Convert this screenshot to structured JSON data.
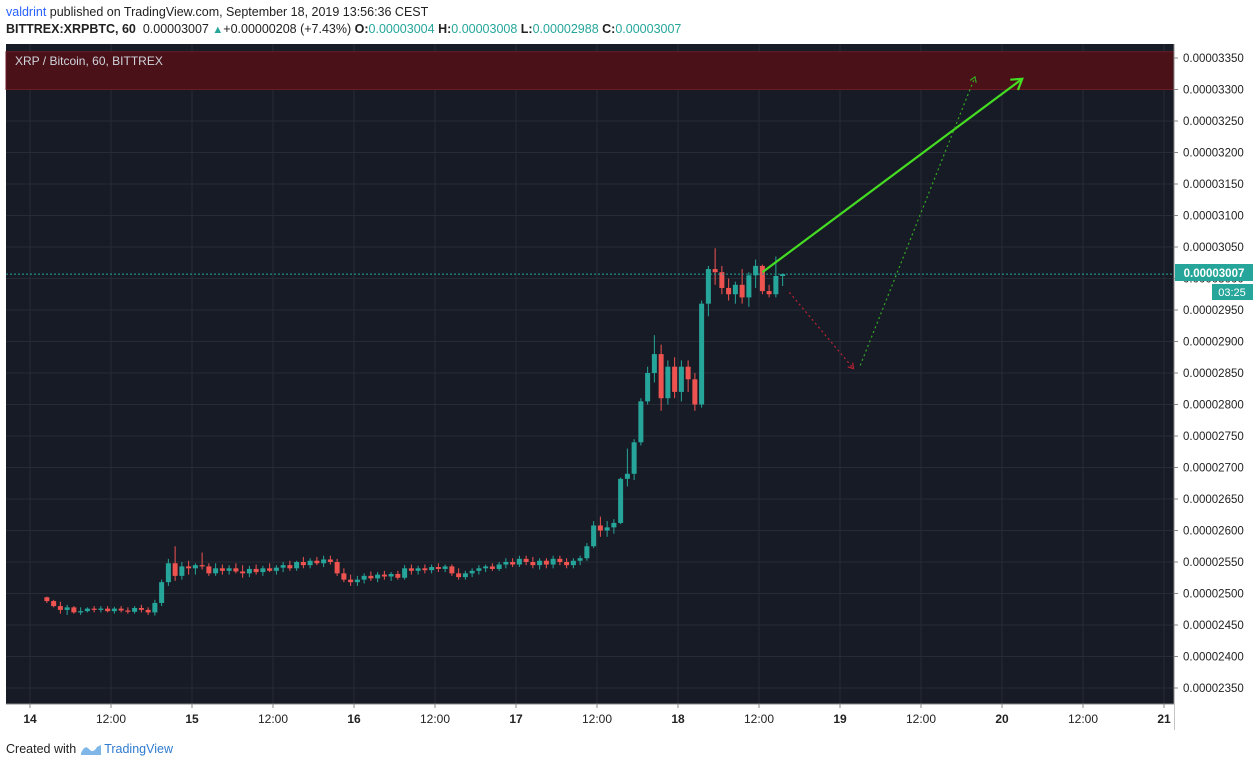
{
  "header": {
    "author": "valdrint",
    "published_text": "published on TradingView.com, September 18, 2019 13:56:36 CEST",
    "symbol": "BITTREX:XRPBTC, 60",
    "last_price": "0.00003007",
    "change": "+0.00000208 (+7.43%)",
    "open_label": "O:",
    "open_value": "0.00003004",
    "high_label": "H:",
    "high_value": "0.00003008",
    "low_label": "L:",
    "low_value": "0.00002988",
    "close_label": "C:",
    "close_value": "0.00003007"
  },
  "footer": {
    "created_with": "Created with",
    "brand": "TradingView"
  },
  "colors": {
    "background": "#171b26",
    "grid": "#262b36",
    "up": "#26a69a",
    "down": "#ef5350",
    "resistance_zone": "#4a1119",
    "arrow_green": "#44dd22",
    "arrow_red": "#bb2233"
  },
  "chart_data": {
    "type": "candlestick",
    "title": "XRP / Bitcoin, 60, BITTREX",
    "ylim": [
      2.33e-05,
      3.36e-05
    ],
    "y_ticks": [
      "0.00002350",
      "0.00002400",
      "0.00002450",
      "0.00002500",
      "0.00002550",
      "0.00002600",
      "0.00002650",
      "0.00002700",
      "0.00002750",
      "0.00002800",
      "0.00002850",
      "0.00002900",
      "0.00002950",
      "0.00003000",
      "0.00003050",
      "0.00003100",
      "0.00003150",
      "0.00003200",
      "0.00003250",
      "0.00003300",
      "0.00003350"
    ],
    "x_ticks": [
      "14",
      "12:00",
      "15",
      "12:00",
      "16",
      "12:00",
      "17",
      "12:00",
      "18",
      "12:00",
      "19",
      "12:00",
      "20",
      "12:00",
      "21"
    ],
    "current_price_label": "0.00003007",
    "countdown_label": "03:25",
    "resistance_zone": [
      3.3e-05,
      3.36e-05
    ],
    "projections": [
      {
        "style": "solid-green",
        "from": [
          108.5,
          3.01e-05
        ],
        "to": [
          147,
          3.317e-05
        ]
      },
      {
        "style": "dotted-red",
        "from": [
          112.5,
          2.978e-05
        ],
        "to": [
          122,
          2.857e-05
        ]
      },
      {
        "style": "dotted-green",
        "from": [
          123,
          2.862e-05
        ],
        "to": [
          140,
          3.32e-05
        ]
      }
    ],
    "candles": [
      [
        2.5,
        2.494,
        2.495,
        2.485,
        2.488
      ],
      [
        3.5,
        2.488,
        2.49,
        2.478,
        2.48
      ],
      [
        4.5,
        2.48,
        2.487,
        2.468,
        2.474
      ],
      [
        5.5,
        2.474,
        2.482,
        2.466,
        2.478
      ],
      [
        6.5,
        2.478,
        2.48,
        2.468,
        2.47
      ],
      [
        7.5,
        2.47,
        2.478,
        2.466,
        2.472
      ],
      [
        8.5,
        2.472,
        2.478,
        2.47,
        2.476
      ],
      [
        9.5,
        2.476,
        2.48,
        2.47,
        2.474
      ],
      [
        10.5,
        2.474,
        2.48,
        2.47,
        2.476
      ],
      [
        11.5,
        2.476,
        2.48,
        2.47,
        2.472
      ],
      [
        12.5,
        2.472,
        2.479,
        2.468,
        2.476
      ],
      [
        13.5,
        2.476,
        2.48,
        2.47,
        2.473
      ],
      [
        14.5,
        2.473,
        2.478,
        2.468,
        2.471
      ],
      [
        15.5,
        2.471,
        2.48,
        2.468,
        2.477
      ],
      [
        16.5,
        2.477,
        2.482,
        2.47,
        2.474
      ],
      [
        17.5,
        2.474,
        2.478,
        2.466,
        2.47
      ],
      [
        18.5,
        2.47,
        2.49,
        2.465,
        2.485
      ],
      [
        19.5,
        2.485,
        2.522,
        2.48,
        2.518
      ],
      [
        20.5,
        2.518,
        2.555,
        2.512,
        2.548
      ],
      [
        21.5,
        2.548,
        2.575,
        2.52,
        2.528
      ],
      [
        22.5,
        2.528,
        2.55,
        2.522,
        2.543
      ],
      [
        23.5,
        2.543,
        2.552,
        2.53,
        2.54
      ],
      [
        24.5,
        2.54,
        2.548,
        2.53,
        2.545
      ],
      [
        25.5,
        2.545,
        2.565,
        2.538,
        2.543
      ],
      [
        26.5,
        2.543,
        2.548,
        2.528,
        2.532
      ],
      [
        27.5,
        2.532,
        2.548,
        2.528,
        2.54
      ],
      [
        28.5,
        2.54,
        2.546,
        2.53,
        2.536
      ],
      [
        29.5,
        2.536,
        2.545,
        2.53,
        2.54
      ],
      [
        30.5,
        2.54,
        2.548,
        2.532,
        2.535
      ],
      [
        31.5,
        2.535,
        2.545,
        2.525,
        2.532
      ],
      [
        32.5,
        2.532,
        2.544,
        2.526,
        2.539
      ],
      [
        33.5,
        2.539,
        2.546,
        2.53,
        2.534
      ],
      [
        34.5,
        2.534,
        2.544,
        2.528,
        2.54
      ],
      [
        35.5,
        2.54,
        2.548,
        2.534,
        2.536
      ],
      [
        36.5,
        2.536,
        2.545,
        2.53,
        2.541
      ],
      [
        37.5,
        2.541,
        2.55,
        2.534,
        2.545
      ],
      [
        38.5,
        2.545,
        2.552,
        2.536,
        2.54
      ],
      [
        39.5,
        2.54,
        2.552,
        2.536,
        2.55
      ],
      [
        40.5,
        2.55,
        2.558,
        2.54,
        2.545
      ],
      [
        41.5,
        2.545,
        2.556,
        2.54,
        2.552
      ],
      [
        42.5,
        2.552,
        2.558,
        2.545,
        2.548
      ],
      [
        43.5,
        2.548,
        2.56,
        2.542,
        2.554
      ],
      [
        44.5,
        2.554,
        2.56,
        2.546,
        2.55
      ],
      [
        45.5,
        2.55,
        2.555,
        2.528,
        2.532
      ],
      [
        46.5,
        2.532,
        2.54,
        2.518,
        2.522
      ],
      [
        47.5,
        2.522,
        2.53,
        2.512,
        2.518
      ],
      [
        48.5,
        2.518,
        2.528,
        2.512,
        2.522
      ],
      [
        49.5,
        2.522,
        2.532,
        2.516,
        2.528
      ],
      [
        50.5,
        2.528,
        2.535,
        2.52,
        2.524
      ],
      [
        51.5,
        2.524,
        2.534,
        2.518,
        2.53
      ],
      [
        52.5,
        2.53,
        2.536,
        2.522,
        2.527
      ],
      [
        53.5,
        2.527,
        2.534,
        2.52,
        2.531
      ],
      [
        54.5,
        2.531,
        2.536,
        2.522,
        2.525
      ],
      [
        55.5,
        2.525,
        2.545,
        2.522,
        2.54
      ],
      [
        56.5,
        2.54,
        2.546,
        2.53,
        2.536
      ],
      [
        57.5,
        2.536,
        2.544,
        2.53,
        2.54
      ],
      [
        58.5,
        2.54,
        2.546,
        2.532,
        2.537
      ],
      [
        59.5,
        2.537,
        2.546,
        2.532,
        2.542
      ],
      [
        60.5,
        2.542,
        2.548,
        2.534,
        2.539
      ],
      [
        61.5,
        2.539,
        2.546,
        2.534,
        2.543
      ],
      [
        62.5,
        2.543,
        2.546,
        2.528,
        2.532
      ],
      [
        63.5,
        2.532,
        2.54,
        2.522,
        2.526
      ],
      [
        64.5,
        2.526,
        2.536,
        2.522,
        2.532
      ],
      [
        65.5,
        2.532,
        2.54,
        2.526,
        2.536
      ],
      [
        66.5,
        2.536,
        2.545,
        2.53,
        2.54
      ],
      [
        67.5,
        2.54,
        2.546,
        2.534,
        2.543
      ],
      [
        68.5,
        2.543,
        2.548,
        2.536,
        2.539
      ],
      [
        69.5,
        2.539,
        2.55,
        2.536,
        2.546
      ],
      [
        70.5,
        2.546,
        2.556,
        2.54,
        2.55
      ],
      [
        71.5,
        2.55,
        2.556,
        2.542,
        2.546
      ],
      [
        72.5,
        2.546,
        2.56,
        2.542,
        2.555
      ],
      [
        73.5,
        2.555,
        2.56,
        2.545,
        2.55
      ],
      [
        74.5,
        2.55,
        2.558,
        2.54,
        2.545
      ],
      [
        75.5,
        2.545,
        2.556,
        2.538,
        2.552
      ],
      [
        76.5,
        2.552,
        2.556,
        2.54,
        2.546
      ],
      [
        77.5,
        2.546,
        2.56,
        2.54,
        2.555
      ],
      [
        78.5,
        2.555,
        2.56,
        2.545,
        2.55
      ],
      [
        79.5,
        2.55,
        2.556,
        2.54,
        2.545
      ],
      [
        80.5,
        2.545,
        2.556,
        2.54,
        2.552
      ],
      [
        81.5,
        2.552,
        2.56,
        2.545,
        2.556
      ],
      [
        82.5,
        2.556,
        2.58,
        2.552,
        2.575
      ],
      [
        83.5,
        2.575,
        2.615,
        2.572,
        2.608
      ],
      [
        84.5,
        2.608,
        2.622,
        2.59,
        2.6
      ],
      [
        85.5,
        2.6,
        2.615,
        2.59,
        2.605
      ],
      [
        86.5,
        2.605,
        2.618,
        2.595,
        2.612
      ],
      [
        87.5,
        2.612,
        2.684,
        2.61,
        2.682
      ],
      [
        88.5,
        2.682,
        2.73,
        2.67,
        2.69
      ],
      [
        89.5,
        2.69,
        2.745,
        2.68,
        2.74
      ],
      [
        90.5,
        2.74,
        2.81,
        2.735,
        2.805
      ],
      [
        91.5,
        2.805,
        2.86,
        2.8,
        2.85
      ],
      [
        92.5,
        2.85,
        2.91,
        2.835,
        2.88
      ],
      [
        93.5,
        2.88,
        2.895,
        2.79,
        2.81
      ],
      [
        94.5,
        2.81,
        2.87,
        2.8,
        2.86
      ],
      [
        95.5,
        2.86,
        2.875,
        2.81,
        2.82
      ],
      [
        96.5,
        2.82,
        2.87,
        2.805,
        2.86
      ],
      [
        97.5,
        2.86,
        2.87,
        2.82,
        2.84
      ],
      [
        98.5,
        2.84,
        2.85,
        2.79,
        2.8
      ],
      [
        99.5,
        2.8,
        2.965,
        2.795,
        2.96
      ],
      [
        100.5,
        2.96,
        3.02,
        2.94,
        3.015
      ],
      [
        101.5,
        3.015,
        3.048,
        2.99,
        3.01
      ],
      [
        102.5,
        3.01,
        3.02,
        2.975,
        2.985
      ],
      [
        103.5,
        2.985,
        3.0,
        2.965,
        2.975
      ],
      [
        104.5,
        2.975,
        2.995,
        2.96,
        2.99
      ],
      [
        105.5,
        2.99,
        3.015,
        2.96,
        2.97
      ],
      [
        106.5,
        2.97,
        3.01,
        2.955,
        3.005
      ],
      [
        107.5,
        3.005,
        3.03,
        2.985,
        3.02
      ],
      [
        108.5,
        3.02,
        3.022,
        2.975,
        2.98
      ],
      [
        109.5,
        2.98,
        2.99,
        2.97,
        2.975
      ],
      [
        110.5,
        2.975,
        3.035,
        2.97,
        3.004
      ],
      [
        111.5,
        3.004,
        3.008,
        2.988,
        3.007
      ]
    ]
  }
}
